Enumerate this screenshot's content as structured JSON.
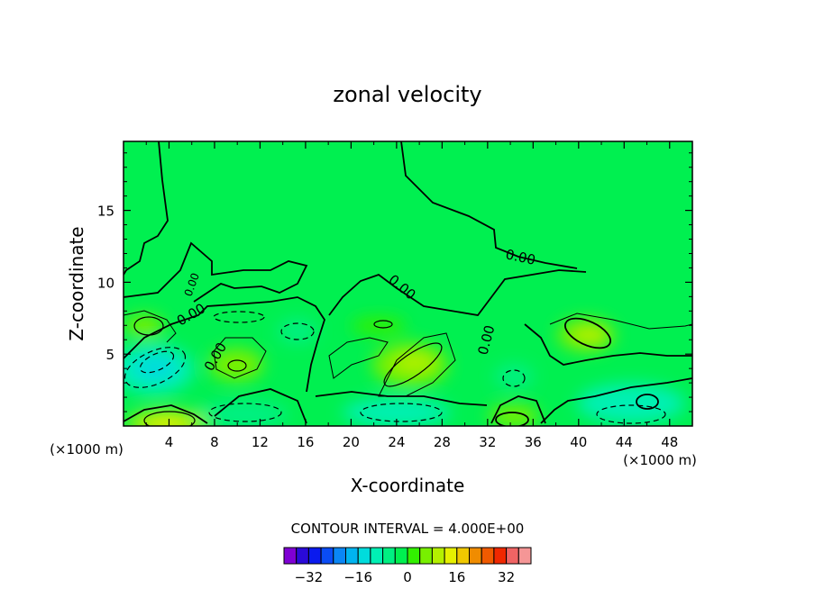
{
  "chart_data": {
    "type": "contour",
    "title": "zonal velocity",
    "xlabel": "X-coordinate",
    "ylabel": "Z-coordinate",
    "x_unit_label": "(×1000 m)",
    "z_unit_label": "(×1000 m)",
    "xlim": [
      0,
      50
    ],
    "ylim": [
      0,
      19.8
    ],
    "x_ticks": [
      "4",
      "8",
      "12",
      "16",
      "20",
      "24",
      "28",
      "32",
      "36",
      "40",
      "44",
      "48"
    ],
    "y_ticks": [
      "5",
      "10",
      "15"
    ],
    "contour_interval_label": "CONTOUR INTERVAL = 4.000E+00",
    "contour_labels": [
      "0.00",
      "0.00",
      "0.00",
      "0.00",
      "0.00",
      "0.00"
    ],
    "colorbar": {
      "levels": [
        -36,
        -32,
        -28,
        -24,
        -20,
        -16,
        -12,
        -8,
        -4,
        0,
        4,
        8,
        12,
        16,
        20,
        24,
        28,
        32,
        36
      ],
      "tick_labels": [
        "-32",
        "-16",
        "0",
        "16",
        "32"
      ],
      "colors": [
        "#7f00d4",
        "#2a0ad8",
        "#0a1aee",
        "#0a4cf5",
        "#0a86f5",
        "#00b4f0",
        "#00dcdc",
        "#00f0b4",
        "#00f082",
        "#00f050",
        "#32f000",
        "#78f000",
        "#b4f000",
        "#e6f000",
        "#f0c800",
        "#f08c00",
        "#f05a00",
        "#f02800",
        "#f06464",
        "#f59696"
      ]
    },
    "cells": [
      {
        "x": 4,
        "z": 0.5,
        "u": 14
      },
      {
        "x": 4,
        "z": 4.5,
        "u": -18
      },
      {
        "x": 10,
        "z": 4,
        "u": 8
      },
      {
        "x": 9,
        "z": 1,
        "u": -6
      },
      {
        "x": 26,
        "z": 4.5,
        "u": 10
      },
      {
        "x": 25,
        "z": 1,
        "u": -10
      },
      {
        "x": 34,
        "z": 0.5,
        "u": 10
      },
      {
        "x": 34,
        "z": 3.5,
        "u": -6
      },
      {
        "x": 41,
        "z": 6.5,
        "u": 10
      },
      {
        "x": 43,
        "z": 1.5,
        "u": -8
      },
      {
        "x": 22,
        "z": 7,
        "u": 4
      },
      {
        "x": 16,
        "z": 7,
        "u": -4
      }
    ]
  }
}
